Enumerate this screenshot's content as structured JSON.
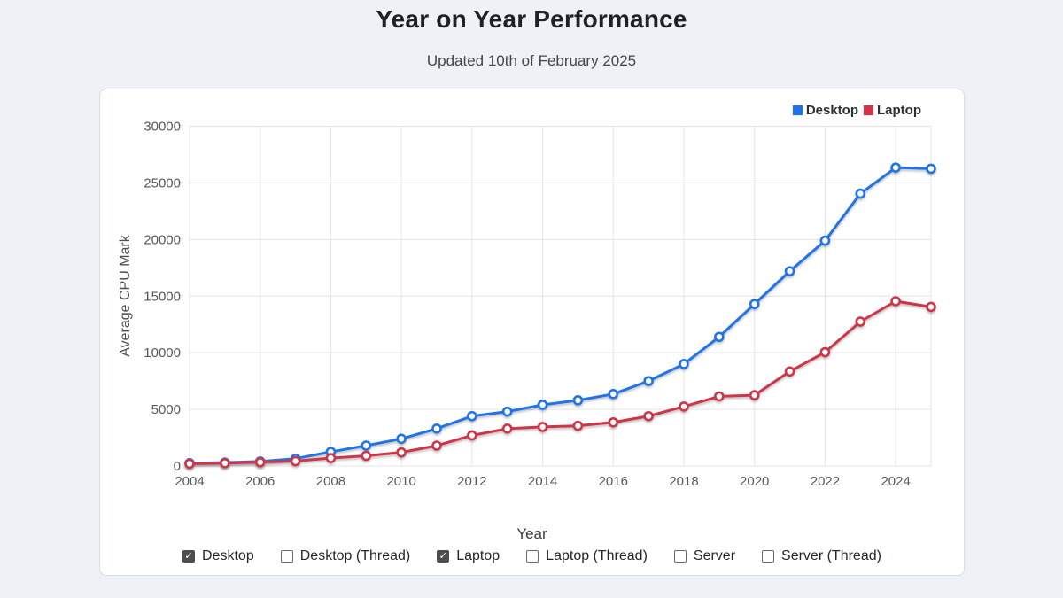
{
  "header": {
    "title": "Year on Year Performance",
    "subtitle": "Updated 10th of February 2025"
  },
  "legend": {
    "items": [
      {
        "label": "Desktop",
        "color": "#2173e4"
      },
      {
        "label": "Laptop",
        "color": "#cd3648"
      }
    ]
  },
  "chart_data": {
    "type": "line",
    "x": [
      2004,
      2005,
      2006,
      2007,
      2008,
      2009,
      2010,
      2011,
      2012,
      2013,
      2014,
      2015,
      2016,
      2017,
      2018,
      2019,
      2020,
      2021,
      2022,
      2023,
      2024,
      2025
    ],
    "series": [
      {
        "name": "Desktop",
        "color": "#2173e4",
        "values": [
          250,
          300,
          400,
          650,
          1250,
          1800,
          2400,
          3300,
          4400,
          4800,
          5400,
          5800,
          6350,
          7500,
          9000,
          11400,
          14300,
          17200,
          19900,
          24050,
          26350,
          26250
        ]
      },
      {
        "name": "Laptop",
        "color": "#cd3648",
        "values": [
          200,
          250,
          330,
          430,
          700,
          900,
          1200,
          1800,
          2700,
          3300,
          3450,
          3550,
          3850,
          4400,
          5250,
          6150,
          6250,
          8350,
          10050,
          12750,
          14550,
          14050
        ]
      }
    ],
    "title": "Year on Year Performance",
    "xlabel": "Year",
    "ylabel": "Average CPU Mark",
    "ylim": [
      0,
      30000
    ],
    "yticks": [
      0,
      5000,
      10000,
      15000,
      20000,
      25000,
      30000
    ],
    "xticks": [
      2004,
      2006,
      2008,
      2010,
      2012,
      2014,
      2016,
      2018,
      2020,
      2022,
      2024
    ],
    "grid": true,
    "legend_position": "top-right",
    "marker": "open-circle"
  },
  "filters": {
    "items": [
      {
        "label": "Desktop",
        "checked": true
      },
      {
        "label": "Desktop (Thread)",
        "checked": false
      },
      {
        "label": "Laptop",
        "checked": true
      },
      {
        "label": "Laptop (Thread)",
        "checked": false
      },
      {
        "label": "Server",
        "checked": false
      },
      {
        "label": "Server (Thread)",
        "checked": false
      }
    ]
  },
  "colors": {
    "page_background": "#eef2f6",
    "panel_background": "#ffffff",
    "panel_border": "#d9dee3",
    "grid": "#e4e4e4",
    "tick_text": "#55595e",
    "title_text": "#1d2227",
    "check_mark": "✓"
  }
}
